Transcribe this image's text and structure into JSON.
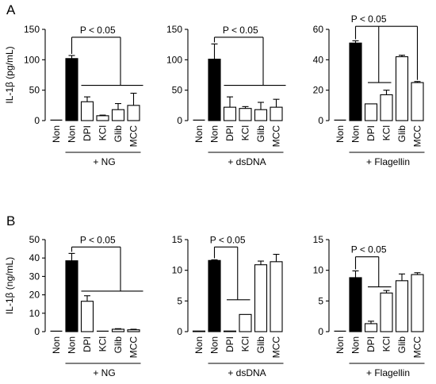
{
  "figure": {
    "panel_letters": [
      "A",
      "B"
    ]
  },
  "chart_data": [
    {
      "panel": "A",
      "type": "bar",
      "ylabel": "IL-1β (pg/mL)",
      "ylim": [
        0,
        150
      ],
      "yticks": [
        0,
        50,
        100,
        150
      ],
      "categories": [
        "Non",
        "Non",
        "DPI",
        "KCl",
        "Glib",
        "MCC"
      ],
      "values": [
        0,
        102,
        31,
        8,
        18,
        25
      ],
      "errors": [
        0,
        5,
        8,
        1,
        10,
        20
      ],
      "fills": [
        "white",
        "black",
        "white",
        "white",
        "white",
        "white"
      ],
      "treatment": "+ NG",
      "annotation": {
        "text": "P < 0.05",
        "from": 1,
        "to": [
          2,
          5
        ],
        "kind": "bracket-bar",
        "y_top": 137,
        "y_fork": 127,
        "y_bar": 58
      }
    },
    {
      "panel": "A",
      "type": "bar",
      "ylabel": "",
      "ylim": [
        0,
        150
      ],
      "yticks": [
        0,
        50,
        100,
        150
      ],
      "categories": [
        "Non",
        "Non",
        "DPI",
        "KCl",
        "Glib",
        "MCC"
      ],
      "values": [
        0,
        101,
        22,
        20,
        18,
        22
      ],
      "errors": [
        0,
        25,
        17,
        3,
        12,
        13
      ],
      "fills": [
        "white",
        "black",
        "white",
        "white",
        "white",
        "white"
      ],
      "treatment": "+ dsDNA",
      "annotation": {
        "text": "P < 0.05",
        "from": 1,
        "to": [
          2,
          5
        ],
        "kind": "bracket-bar",
        "y_top": 137,
        "y_fork": 127,
        "y_bar": 58
      }
    },
    {
      "panel": "A",
      "type": "bar",
      "ylabel": "",
      "ylim": [
        0,
        60
      ],
      "yticks": [
        0,
        20,
        40,
        60
      ],
      "categories": [
        "Non",
        "Non",
        "DPI",
        "KCl",
        "Glib",
        "MCC"
      ],
      "values": [
        0,
        51,
        11,
        17,
        42,
        25
      ],
      "errors": [
        0,
        1.5,
        0,
        3,
        1,
        0.7
      ],
      "fills": [
        "white",
        "black",
        "white",
        "white",
        "white",
        "white"
      ],
      "treatment": "+ Flagellin",
      "annotation": {
        "text": "P < 0.05",
        "from": 1,
        "to": [
          2,
          3
        ],
        "also_to": 5,
        "kind": "bracket-short",
        "y_top": 62,
        "y_fork": 58,
        "y_bar": 25
      }
    },
    {
      "panel": "B",
      "type": "bar",
      "ylabel": "IL-1β (ng/mL)",
      "ylim": [
        0,
        50
      ],
      "yticks": [
        0,
        10,
        20,
        30,
        40,
        50
      ],
      "categories": [
        "Non",
        "Non",
        "DPI",
        "KCl",
        "Glib",
        "MCC"
      ],
      "values": [
        0,
        38.5,
        16.5,
        0.1,
        1.3,
        1
      ],
      "errors": [
        0,
        4,
        3,
        0,
        0.3,
        0.3
      ],
      "fills": [
        "white",
        "black",
        "white",
        "white",
        "white",
        "white"
      ],
      "treatment": "+ NG",
      "annotation": {
        "text": "P < 0.05",
        "from": 1,
        "to": [
          2,
          5
        ],
        "kind": "bracket-bar",
        "y_top": 46,
        "y_fork": 36,
        "y_bar": 22
      }
    },
    {
      "panel": "B",
      "type": "bar",
      "ylabel": "",
      "ylim": [
        0,
        15
      ],
      "yticks": [
        0,
        5,
        10,
        15
      ],
      "categories": [
        "Non",
        "Non",
        "DPI",
        "KCl",
        "Glib",
        "MCC"
      ],
      "values": [
        0.1,
        11.6,
        0.1,
        2.8,
        10.9,
        11.4
      ],
      "errors": [
        0,
        0.1,
        0,
        0,
        0.6,
        1.2
      ],
      "fills": [
        "white",
        "black",
        "white",
        "white",
        "white",
        "white"
      ],
      "treatment": "+ dsDNA",
      "annotation": {
        "text": "P < 0.05",
        "from": 1,
        "to": [
          2,
          3
        ],
        "kind": "bracket-short",
        "y_top": 13.8,
        "y_fork": 12.5,
        "y_bar": 5.2
      }
    },
    {
      "panel": "B",
      "type": "bar",
      "ylabel": "",
      "ylim": [
        0,
        15
      ],
      "yticks": [
        0,
        5,
        10,
        15
      ],
      "categories": [
        "Non",
        "Non",
        "DPI",
        "KCl",
        "Glib",
        "MCC"
      ],
      "values": [
        0,
        8.8,
        1.3,
        6.3,
        8.3,
        9.3
      ],
      "errors": [
        0,
        1.1,
        0.4,
        0.4,
        1.1,
        0.3
      ],
      "fills": [
        "white",
        "black",
        "white",
        "white",
        "white",
        "white"
      ],
      "treatment": "+ Flagellin",
      "annotation": {
        "text": "P < 0.05",
        "from": 1,
        "to": [
          2,
          3
        ],
        "kind": "bracket-short",
        "y_top": 12.2,
        "y_fork": 10.6,
        "y_bar": 7.3
      }
    }
  ]
}
